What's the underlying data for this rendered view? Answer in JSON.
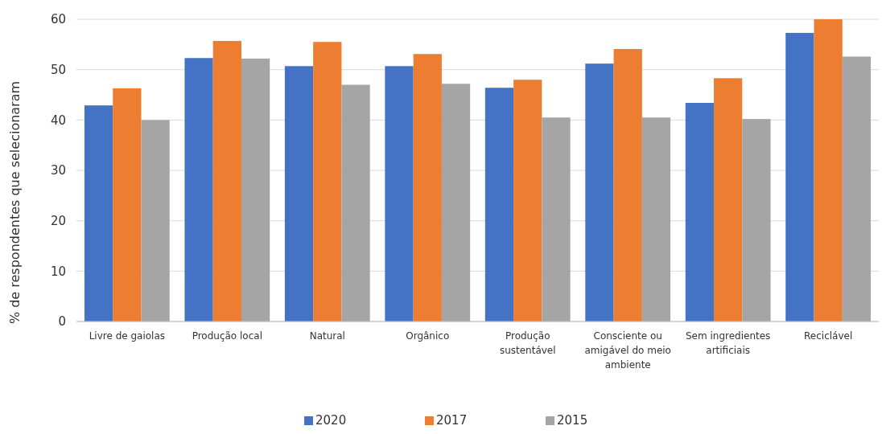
{
  "chart_data": {
    "type": "bar",
    "ylabel": "% de respondentes que selecionaram",
    "categories": [
      "Livre de gaiolas",
      "Produção local",
      "Natural",
      "Orgânico",
      "Produção sustentável",
      "Consciente ou amigável do meio ambiente",
      "Sem ingredientes artificiais",
      "Reciclável"
    ],
    "series": [
      {
        "name": "2020",
        "color": "#4472c4",
        "values": [
          42.9,
          52.3,
          50.7,
          50.7,
          46.4,
          51.2,
          43.4,
          57.3
        ]
      },
      {
        "name": "2017",
        "color": "#ed7d31",
        "values": [
          46.3,
          55.7,
          55.5,
          53.1,
          48,
          54.1,
          48.3,
          60
        ]
      },
      {
        "name": "2015",
        "color": "#a5a5a5",
        "values": [
          40,
          52.2,
          47,
          47.2,
          40.5,
          40.5,
          40.2,
          52.6
        ]
      }
    ],
    "ylim": [
      0,
      60
    ],
    "yticks": [
      0,
      10,
      20,
      30,
      40,
      50,
      60
    ],
    "grid": "y",
    "legend": "bottom"
  }
}
